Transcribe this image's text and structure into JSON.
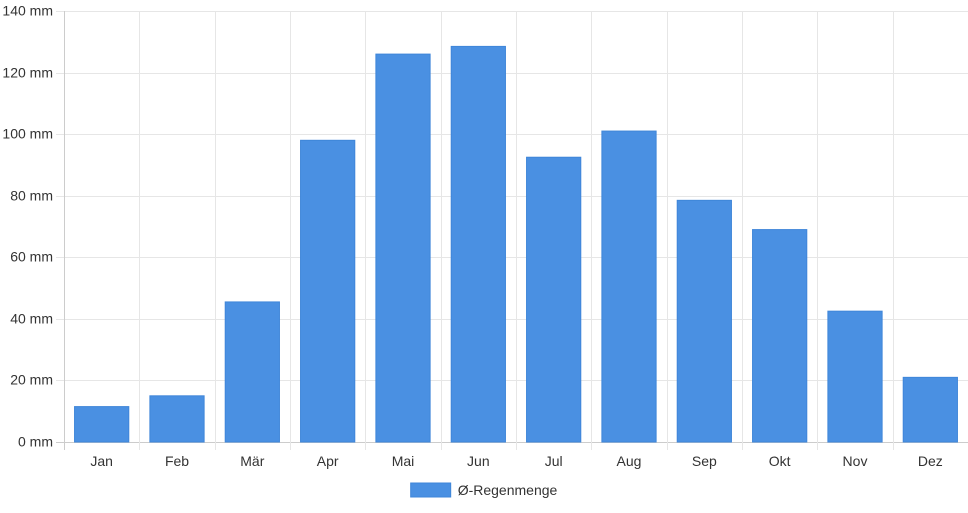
{
  "chart_data": {
    "type": "bar",
    "title": "",
    "xlabel": "",
    "ylabel": "",
    "categories": [
      "Jan",
      "Feb",
      "Mär",
      "Apr",
      "Mai",
      "Jun",
      "Jul",
      "Aug",
      "Sep",
      "Okt",
      "Nov",
      "Dez"
    ],
    "series": [
      {
        "name": "Ø-Regenmenge",
        "values": [
          11.5,
          15,
          45.5,
          98,
          126,
          128.5,
          92.5,
          101,
          78.5,
          69,
          42.5,
          21
        ],
        "color": "#4a90e2"
      }
    ],
    "ylim": [
      0,
      140
    ],
    "yticks": [
      0,
      20,
      40,
      60,
      80,
      100,
      120,
      140
    ],
    "y_unit_suffix": " mm",
    "grid": true,
    "legend": "bottom-center"
  }
}
